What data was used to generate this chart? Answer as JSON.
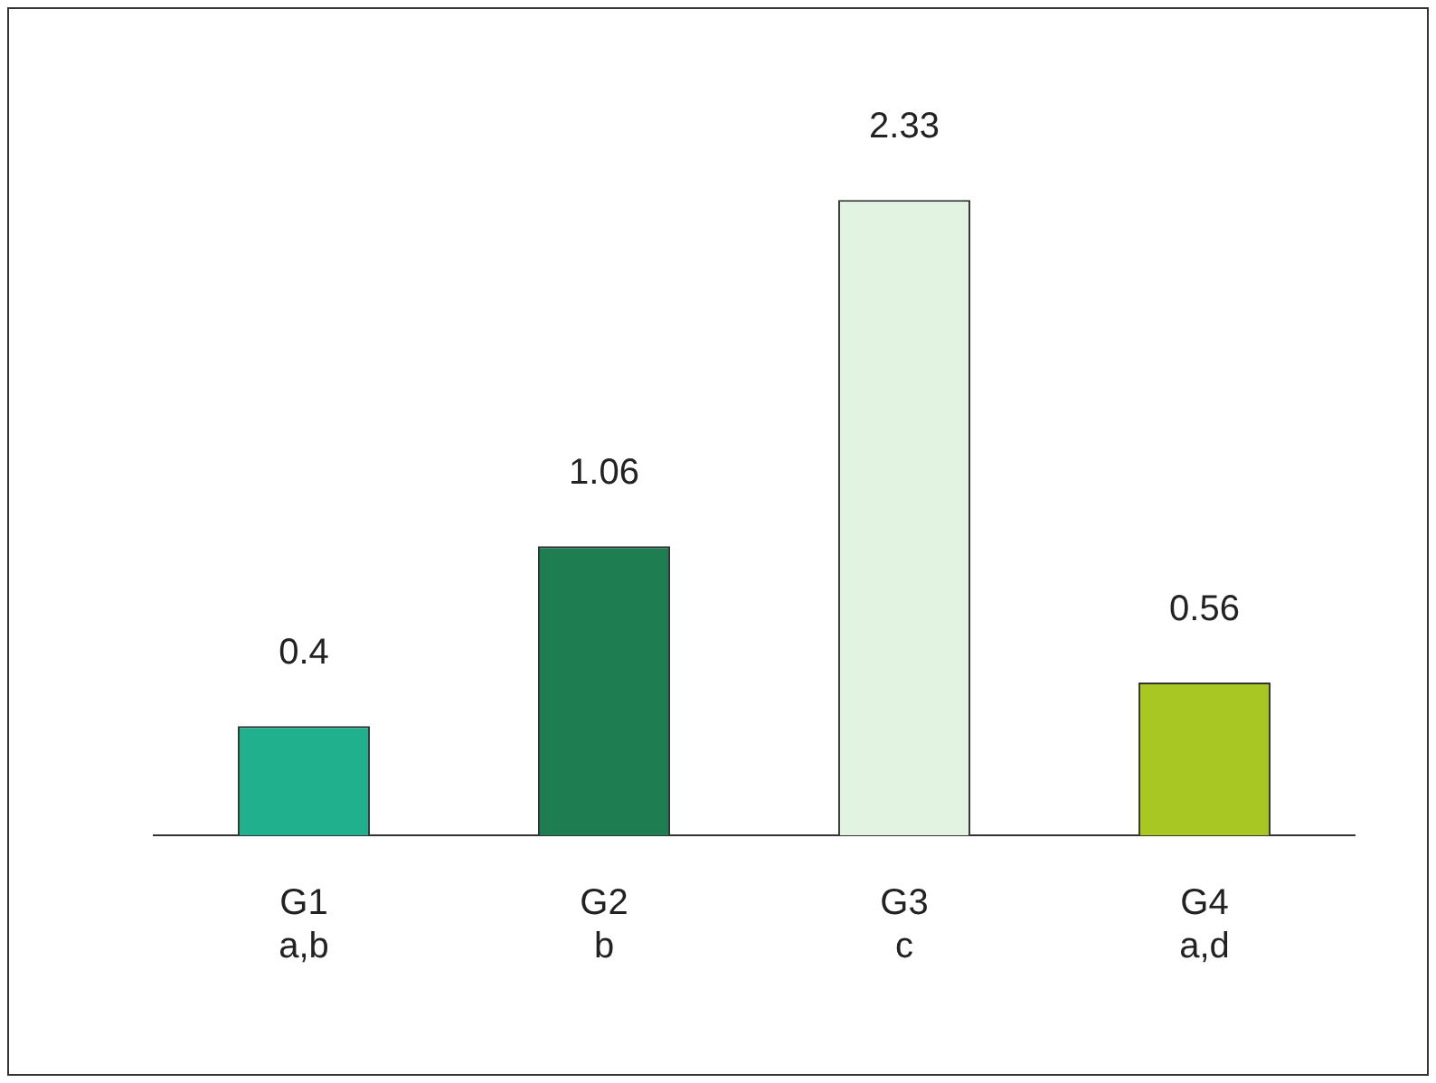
{
  "chart_data": {
    "type": "bar",
    "categories": [
      "G1\na,b",
      "G2\nb",
      "G3\nc",
      "G4\na,d"
    ],
    "values": [
      0.4,
      1.06,
      2.33,
      0.56
    ],
    "colors": [
      "#20b08e",
      "#1f7d52",
      "#e2f3e2",
      "#a9c722"
    ],
    "data_labels": true,
    "grid": false,
    "legend": false
  }
}
